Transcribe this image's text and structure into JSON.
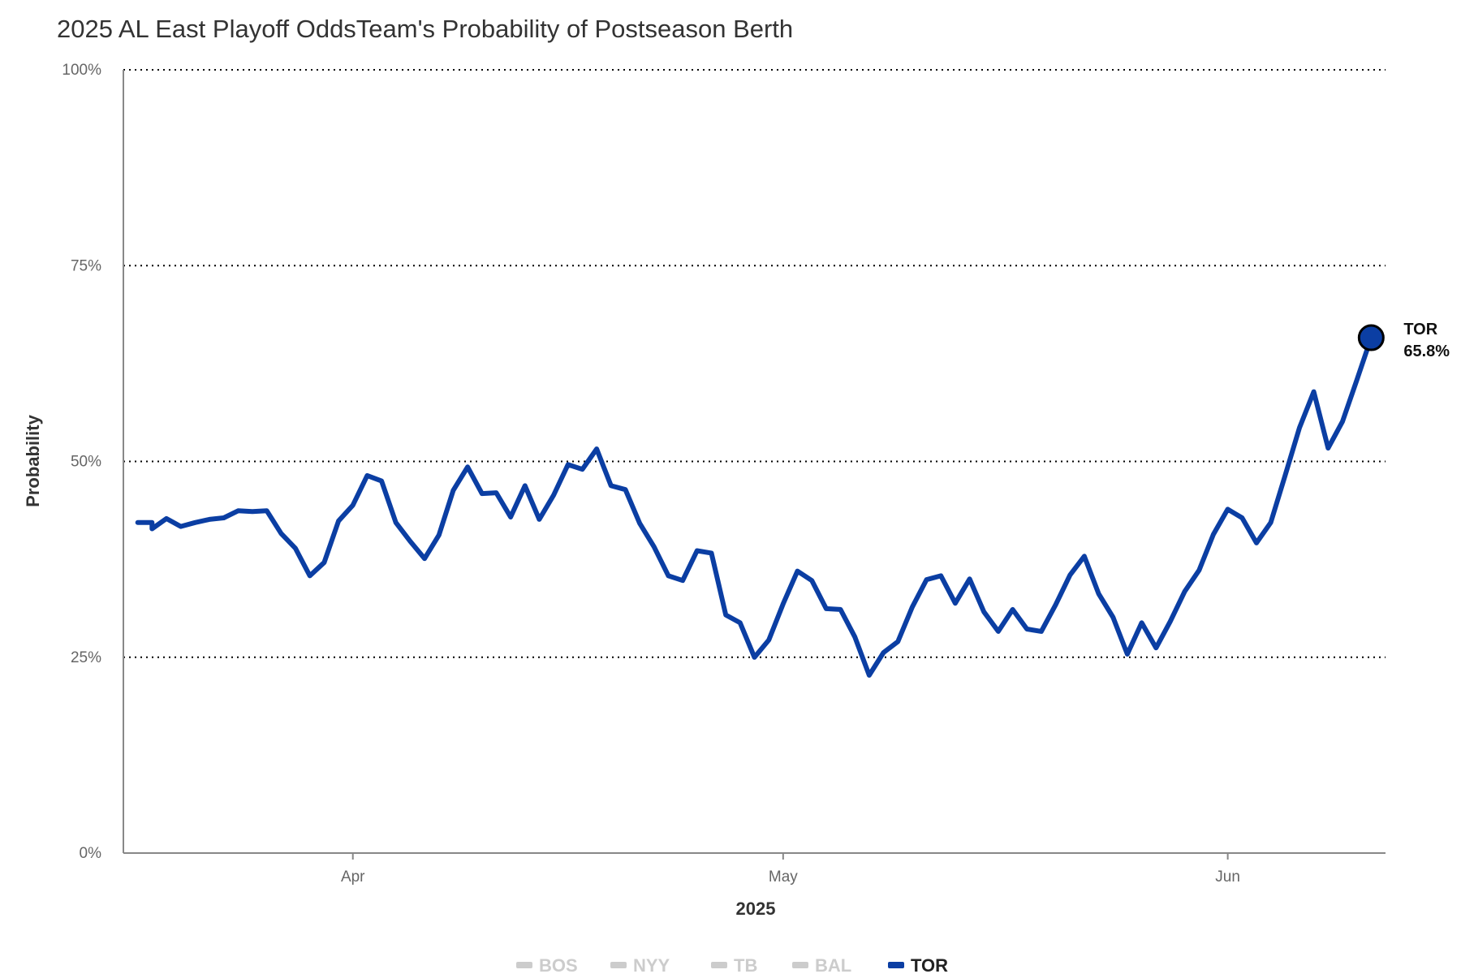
{
  "colors": {
    "TOR": "#0b3ea3",
    "inactive": "#cccccc",
    "grid": "#000000",
    "axis": "#888888"
  },
  "chart_data": {
    "type": "line",
    "title": "2025 AL East Playoff OddsTeam's Probability of Postseason Berth",
    "xlabel": "2025",
    "ylabel": "Probability",
    "ylim": [
      0,
      100
    ],
    "xlim": [
      "2025-03-16",
      "2025-06-12"
    ],
    "y_ticks": [
      {
        "value": 0,
        "label": "0%"
      },
      {
        "value": 25,
        "label": "25%"
      },
      {
        "value": 50,
        "label": "50%"
      },
      {
        "value": 75,
        "label": "75%"
      },
      {
        "value": 100,
        "label": "100%"
      }
    ],
    "x_ticks": [
      {
        "date": "2025-04-01",
        "label": "Apr"
      },
      {
        "date": "2025-05-01",
        "label": "May"
      },
      {
        "date": "2025-06-01",
        "label": "Jun"
      }
    ],
    "grid": "horizontal dotted",
    "legend": {
      "placement": "bottom",
      "items": [
        {
          "name": "BOS",
          "active": false
        },
        {
          "name": "NYY",
          "active": false
        },
        {
          "name": "TB",
          "active": false
        },
        {
          "name": "BAL",
          "active": false
        },
        {
          "name": "TOR",
          "active": true
        }
      ]
    },
    "series": [
      {
        "name": "TOR",
        "end_label": "TOR",
        "end_value_label": "65.8%",
        "x": [
          "2025-03-17",
          "2025-03-18",
          "2025-03-18",
          "2025-03-19",
          "2025-03-20",
          "2025-03-21",
          "2025-03-22",
          "2025-03-23",
          "2025-03-24",
          "2025-03-25",
          "2025-03-26",
          "2025-03-27",
          "2025-03-28",
          "2025-03-29",
          "2025-03-30",
          "2025-03-31",
          "2025-04-01",
          "2025-04-02",
          "2025-04-03",
          "2025-04-04",
          "2025-04-05",
          "2025-04-06",
          "2025-04-07",
          "2025-04-08",
          "2025-04-09",
          "2025-04-10",
          "2025-04-11",
          "2025-04-12",
          "2025-04-13",
          "2025-04-14",
          "2025-04-15",
          "2025-04-16",
          "2025-04-17",
          "2025-04-18",
          "2025-04-19",
          "2025-04-20",
          "2025-04-21",
          "2025-04-22",
          "2025-04-23",
          "2025-04-24",
          "2025-04-25",
          "2025-04-26",
          "2025-04-27",
          "2025-04-28",
          "2025-04-29",
          "2025-04-30",
          "2025-05-01",
          "2025-05-02",
          "2025-05-03",
          "2025-05-04",
          "2025-05-05",
          "2025-05-06",
          "2025-05-07",
          "2025-05-08",
          "2025-05-09",
          "2025-05-10",
          "2025-05-11",
          "2025-05-12",
          "2025-05-13",
          "2025-05-14",
          "2025-05-15",
          "2025-05-16",
          "2025-05-17",
          "2025-05-18",
          "2025-05-19",
          "2025-05-20",
          "2025-05-21",
          "2025-05-22",
          "2025-05-23",
          "2025-05-24",
          "2025-05-25",
          "2025-05-26",
          "2025-05-27",
          "2025-05-28",
          "2025-05-29",
          "2025-05-30",
          "2025-05-31",
          "2025-06-01",
          "2025-06-02",
          "2025-06-03",
          "2025-06-04",
          "2025-06-05",
          "2025-06-06",
          "2025-06-07",
          "2025-06-08",
          "2025-06-09",
          "2025-06-10",
          "2025-06-11"
        ],
        "values": [
          42.2,
          42.2,
          41.4,
          42.7,
          41.7,
          42.2,
          42.6,
          42.8,
          43.7,
          43.6,
          43.7,
          40.8,
          38.9,
          35.4,
          37.1,
          42.4,
          44.4,
          48.2,
          47.5,
          42.2,
          39.8,
          37.6,
          40.6,
          46.3,
          49.3,
          45.9,
          46.0,
          42.9,
          46.9,
          42.6,
          45.7,
          49.6,
          49.0,
          51.6,
          46.9,
          46.4,
          42.1,
          39.1,
          35.4,
          34.8,
          38.6,
          38.3,
          30.4,
          29.4,
          25.0,
          27.2,
          31.8,
          36.0,
          34.8,
          31.2,
          31.1,
          27.6,
          22.7,
          25.6,
          27.0,
          31.4,
          34.9,
          35.4,
          31.9,
          35.0,
          30.8,
          28.3,
          31.1,
          28.6,
          28.3,
          31.7,
          35.5,
          37.9,
          33.1,
          30.1,
          25.4,
          29.4,
          26.2,
          29.6,
          33.4,
          36.1,
          40.7,
          43.9,
          42.8,
          39.6,
          42.2,
          48.2,
          54.3,
          58.9,
          51.7,
          55.1,
          60.4,
          65.8
        ]
      }
    ]
  }
}
